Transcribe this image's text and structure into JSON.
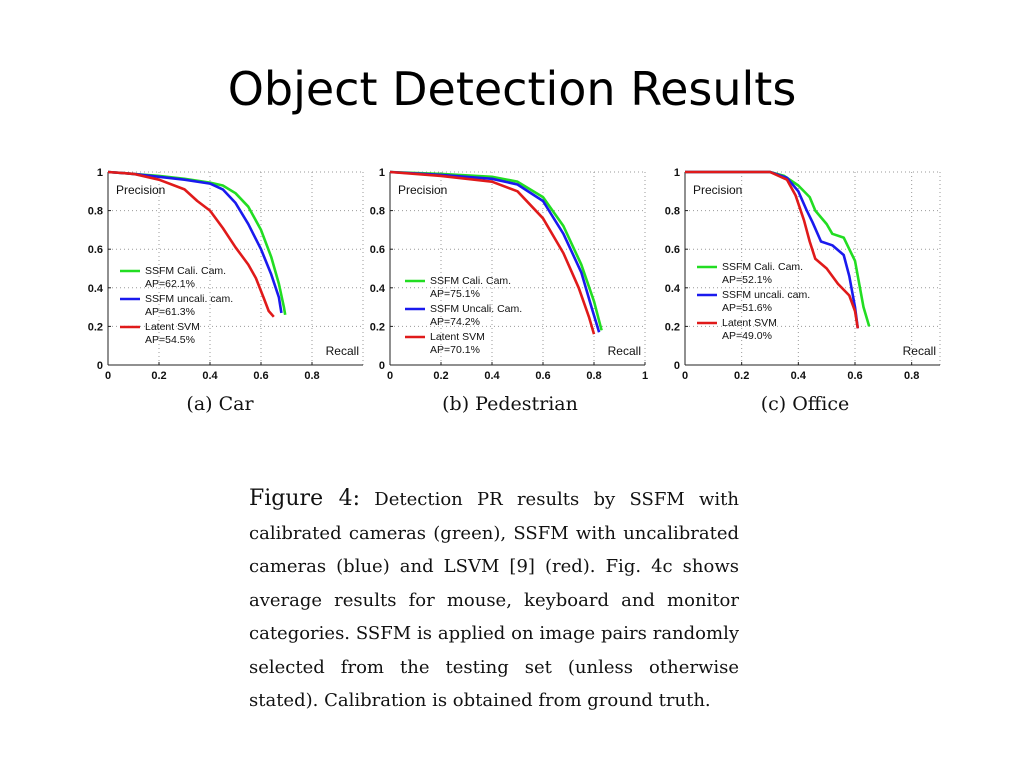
{
  "title": "Object Detection Results",
  "subcaptions": [
    "(a) Car",
    "(b) Pedestrian",
    "(c) Office"
  ],
  "figure_caption": {
    "label": "Figure 4:",
    "text": "Detection PR results by SSFM with calibrated cameras (green), SSFM with uncalibrated cameras (blue) and LSVM [9] (red). Fig. 4c shows average results for mouse, keyboard and monitor categories. SSFM is applied on image pairs randomly selected from the testing set (unless otherwise stated). Calibration is obtained from ground truth."
  },
  "colors": {
    "green": "#22dd22",
    "blue": "#1a1aee",
    "red": "#e01a1a"
  },
  "chart_data": [
    {
      "type": "line",
      "ylabel": "Precision",
      "xlabel": "Recall",
      "xlim": [
        0,
        1
      ],
      "ylim": [
        0,
        1
      ],
      "xticks": [
        "0",
        "0.2",
        "0.4",
        "0.6",
        "0.8"
      ],
      "yticks": [
        "0",
        "0.2",
        "0.4",
        "0.6",
        "0.8",
        "1"
      ],
      "grid": true,
      "legend_position": "center-left",
      "series": [
        {
          "name": "SSFM Cali. Cam.",
          "ap": "AP=62.1%",
          "color": "#22dd22",
          "points": [
            [
              0.0,
              1.0
            ],
            [
              0.1,
              0.99
            ],
            [
              0.2,
              0.98
            ],
            [
              0.3,
              0.965
            ],
            [
              0.4,
              0.945
            ],
            [
              0.45,
              0.93
            ],
            [
              0.5,
              0.89
            ],
            [
              0.55,
              0.82
            ],
            [
              0.6,
              0.7
            ],
            [
              0.64,
              0.56
            ],
            [
              0.67,
              0.42
            ],
            [
              0.69,
              0.3
            ],
            [
              0.695,
              0.26
            ]
          ]
        },
        {
          "name": "SSFM uncali. cam.",
          "ap": "AP=61.3%",
          "color": "#1a1aee",
          "points": [
            [
              0.0,
              1.0
            ],
            [
              0.1,
              0.99
            ],
            [
              0.2,
              0.975
            ],
            [
              0.3,
              0.96
            ],
            [
              0.4,
              0.94
            ],
            [
              0.45,
              0.91
            ],
            [
              0.5,
              0.84
            ],
            [
              0.55,
              0.73
            ],
            [
              0.6,
              0.6
            ],
            [
              0.64,
              0.47
            ],
            [
              0.67,
              0.35
            ],
            [
              0.68,
              0.27
            ]
          ]
        },
        {
          "name": "Latent SVM",
          "ap": "AP=54.5%",
          "color": "#e01a1a",
          "points": [
            [
              0.0,
              1.0
            ],
            [
              0.1,
              0.99
            ],
            [
              0.2,
              0.96
            ],
            [
              0.3,
              0.91
            ],
            [
              0.35,
              0.85
            ],
            [
              0.4,
              0.8
            ],
            [
              0.45,
              0.71
            ],
            [
              0.5,
              0.61
            ],
            [
              0.55,
              0.52
            ],
            [
              0.58,
              0.45
            ],
            [
              0.61,
              0.35
            ],
            [
              0.63,
              0.28
            ],
            [
              0.65,
              0.25
            ]
          ]
        }
      ]
    },
    {
      "type": "line",
      "ylabel": "Precision",
      "xlabel": "Recall",
      "xlim": [
        0,
        1
      ],
      "ylim": [
        0,
        1
      ],
      "xticks": [
        "0",
        "0.2",
        "0.4",
        "0.6",
        "0.8",
        "1"
      ],
      "yticks": [
        "0",
        "0.2",
        "0.4",
        "0.6",
        "0.8",
        "1"
      ],
      "grid": true,
      "legend_position": "bottom-left",
      "series": [
        {
          "name": "SSFM Cali. Cam.",
          "ap": "AP=75.1%",
          "color": "#22dd22",
          "points": [
            [
              0.0,
              1.0
            ],
            [
              0.2,
              0.99
            ],
            [
              0.4,
              0.975
            ],
            [
              0.5,
              0.95
            ],
            [
              0.6,
              0.87
            ],
            [
              0.68,
              0.72
            ],
            [
              0.75,
              0.52
            ],
            [
              0.8,
              0.33
            ],
            [
              0.83,
              0.18
            ]
          ]
        },
        {
          "name": "SSFM Uncali. Cam.",
          "ap": "AP=74.2%",
          "color": "#1a1aee",
          "points": [
            [
              0.0,
              1.0
            ],
            [
              0.2,
              0.985
            ],
            [
              0.4,
              0.965
            ],
            [
              0.5,
              0.935
            ],
            [
              0.6,
              0.85
            ],
            [
              0.68,
              0.68
            ],
            [
              0.75,
              0.48
            ],
            [
              0.79,
              0.3
            ],
            [
              0.82,
              0.17
            ]
          ]
        },
        {
          "name": "Latent SVM",
          "ap": "AP=70.1%",
          "color": "#e01a1a",
          "points": [
            [
              0.0,
              1.0
            ],
            [
              0.2,
              0.98
            ],
            [
              0.4,
              0.95
            ],
            [
              0.5,
              0.9
            ],
            [
              0.6,
              0.76
            ],
            [
              0.68,
              0.58
            ],
            [
              0.74,
              0.4
            ],
            [
              0.78,
              0.25
            ],
            [
              0.8,
              0.16
            ]
          ]
        }
      ]
    },
    {
      "type": "line",
      "ylabel": "Precision",
      "xlabel": "Recall",
      "xlim": [
        0,
        0.9
      ],
      "ylim": [
        0,
        1
      ],
      "xticks": [
        "0",
        "0.2",
        "0.4",
        "0.6",
        "0.8"
      ],
      "yticks": [
        "0",
        "0.2",
        "0.4",
        "0.6",
        "0.8",
        "1"
      ],
      "grid": true,
      "legend_position": "center-left",
      "series": [
        {
          "name": "SSFM Cali. Cam.",
          "ap": "AP=52.1%",
          "color": "#22dd22",
          "points": [
            [
              0.0,
              1.0
            ],
            [
              0.3,
              1.0
            ],
            [
              0.35,
              0.98
            ],
            [
              0.4,
              0.93
            ],
            [
              0.44,
              0.87
            ],
            [
              0.46,
              0.8
            ],
            [
              0.5,
              0.73
            ],
            [
              0.52,
              0.68
            ],
            [
              0.56,
              0.66
            ],
            [
              0.58,
              0.6
            ],
            [
              0.6,
              0.54
            ],
            [
              0.63,
              0.3
            ],
            [
              0.65,
              0.2
            ]
          ]
        },
        {
          "name": "SSFM uncali. cam.",
          "ap": "AP=51.6%",
          "color": "#1a1aee",
          "points": [
            [
              0.0,
              1.0
            ],
            [
              0.3,
              1.0
            ],
            [
              0.36,
              0.97
            ],
            [
              0.4,
              0.9
            ],
            [
              0.43,
              0.8
            ],
            [
              0.45,
              0.74
            ],
            [
              0.48,
              0.64
            ],
            [
              0.52,
              0.62
            ],
            [
              0.56,
              0.57
            ],
            [
              0.58,
              0.46
            ],
            [
              0.6,
              0.3
            ],
            [
              0.61,
              0.19
            ]
          ]
        },
        {
          "name": "Latent SVM",
          "ap": "AP=49.0%",
          "color": "#e01a1a",
          "points": [
            [
              0.0,
              1.0
            ],
            [
              0.3,
              1.0
            ],
            [
              0.36,
              0.96
            ],
            [
              0.39,
              0.88
            ],
            [
              0.42,
              0.75
            ],
            [
              0.44,
              0.64
            ],
            [
              0.46,
              0.55
            ],
            [
              0.5,
              0.5
            ],
            [
              0.54,
              0.42
            ],
            [
              0.58,
              0.36
            ],
            [
              0.6,
              0.28
            ],
            [
              0.61,
              0.19
            ]
          ]
        }
      ]
    }
  ]
}
